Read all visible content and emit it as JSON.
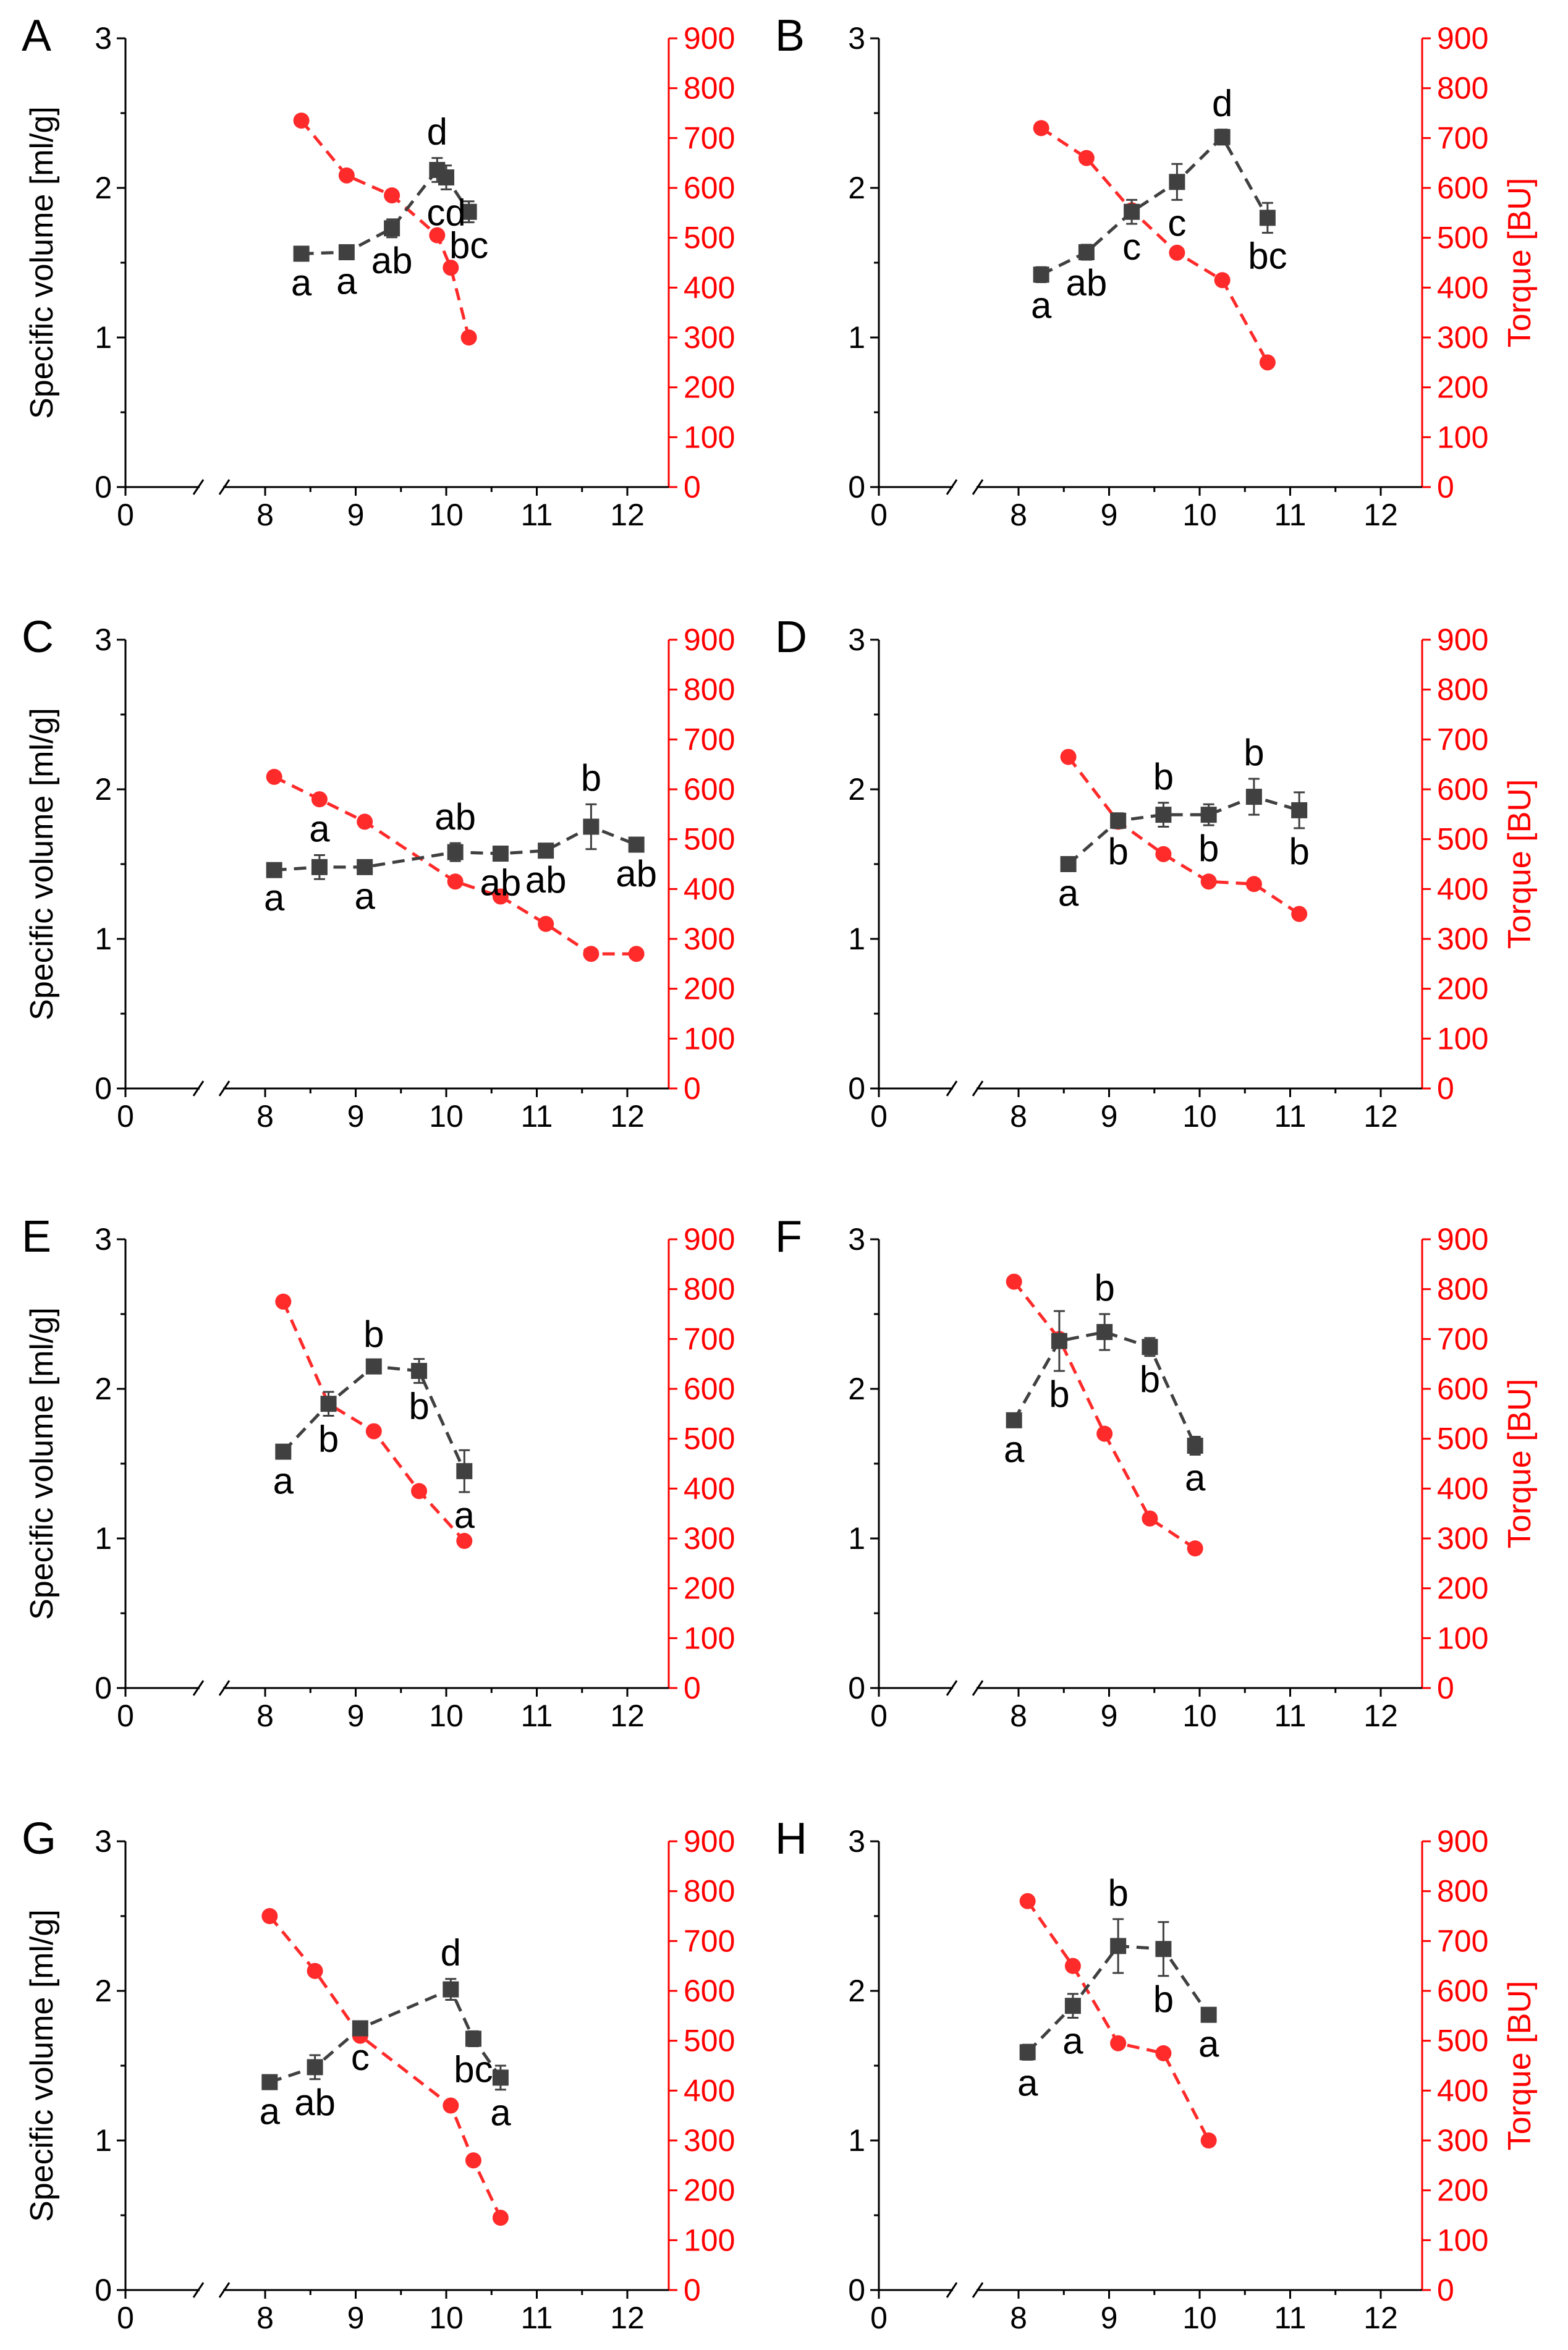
{
  "figure": {
    "left_axis_label": "Specific volume [ml/g]",
    "right_axis_label": "Torque [BU]",
    "x_tick_labels": [
      "0",
      "8",
      "9",
      "10",
      "11",
      "12"
    ],
    "left_tick_labels": [
      "0",
      "1",
      "2",
      "3"
    ],
    "right_tick_labels": [
      "0",
      "100",
      "200",
      "300",
      "400",
      "500",
      "600",
      "700",
      "800",
      "900"
    ],
    "colors": {
      "specific_volume": "#404040",
      "torque": "#ff2a2a",
      "axis": "#000000",
      "right_axis": "#ff0000"
    }
  },
  "chart_data": [
    {
      "type": "line",
      "panel": "A",
      "xlim": [
        0,
        12.5
      ],
      "x_break": [
        0.6,
        7.4
      ],
      "ylim_left": [
        0,
        3
      ],
      "ylim_right": [
        0,
        900
      ],
      "xlabel": "",
      "ylabel": "Specific volume [ml/g]",
      "ylabel_right": "",
      "series": [
        {
          "name": "Specific volume",
          "axis": "left",
          "x": [
            8.4,
            8.9,
            9.4,
            9.9,
            10.0,
            10.25
          ],
          "values": [
            1.56,
            1.57,
            1.73,
            2.12,
            2.07,
            1.84
          ],
          "errors": [
            0.04,
            0.04,
            0.06,
            0.08,
            0.08,
            0.07
          ],
          "labels": [
            "a",
            "a",
            "ab",
            "d",
            "cd",
            "bc"
          ]
        },
        {
          "name": "Torque",
          "axis": "right",
          "x": [
            8.4,
            8.9,
            9.4,
            9.9,
            10.05,
            10.25
          ],
          "values": [
            735,
            625,
            585,
            505,
            440,
            300
          ]
        }
      ]
    },
    {
      "type": "line",
      "panel": "B",
      "xlim": [
        0,
        12.5
      ],
      "x_break": [
        0.6,
        7.4
      ],
      "ylim_left": [
        0,
        3
      ],
      "ylim_right": [
        0,
        900
      ],
      "xlabel": "",
      "ylabel": "",
      "ylabel_right": "Torque [BU]",
      "series": [
        {
          "name": "Specific volume",
          "axis": "left",
          "x": [
            8.25,
            8.75,
            9.25,
            9.75,
            10.25,
            10.75
          ],
          "values": [
            1.42,
            1.57,
            1.84,
            2.04,
            2.34,
            1.8
          ],
          "errors": [
            0.05,
            0.05,
            0.08,
            0.12,
            0.05,
            0.1
          ],
          "labels": [
            "a",
            "ab",
            "c",
            "c",
            "d",
            "bc"
          ]
        },
        {
          "name": "Torque",
          "axis": "right",
          "x": [
            8.25,
            8.75,
            9.25,
            9.75,
            10.25,
            10.75
          ],
          "values": [
            720,
            660,
            555,
            470,
            415,
            250
          ]
        }
      ]
    },
    {
      "type": "line",
      "panel": "C",
      "xlim": [
        0,
        12.5
      ],
      "x_break": [
        0.6,
        7.4
      ],
      "ylim_left": [
        0,
        3
      ],
      "ylim_right": [
        0,
        900
      ],
      "xlabel": "",
      "ylabel": "Specific volume [ml/g]",
      "ylabel_right": "",
      "series": [
        {
          "name": "Specific volume",
          "axis": "left",
          "x": [
            8.1,
            8.6,
            9.1,
            10.1,
            10.6,
            11.1,
            11.6,
            12.1
          ],
          "values": [
            1.46,
            1.48,
            1.48,
            1.58,
            1.57,
            1.59,
            1.75,
            1.63
          ],
          "errors": [
            0.03,
            0.08,
            0.04,
            0.06,
            0.04,
            0.04,
            0.15,
            0.04
          ],
          "labels": [
            "a",
            "a",
            "a",
            "ab",
            "ab",
            "ab",
            "b",
            "ab"
          ]
        },
        {
          "name": "Torque",
          "axis": "right",
          "x": [
            8.1,
            8.6,
            9.1,
            10.1,
            10.6,
            11.1,
            11.6,
            12.1
          ],
          "values": [
            625,
            580,
            535,
            415,
            385,
            330,
            270,
            270
          ]
        }
      ]
    },
    {
      "type": "line",
      "panel": "D",
      "xlim": [
        0,
        12.5
      ],
      "x_break": [
        0.6,
        7.4
      ],
      "ylim_left": [
        0,
        3
      ],
      "ylim_right": [
        0,
        900
      ],
      "xlabel": "",
      "ylabel": "",
      "ylabel_right": "Torque [BU]",
      "series": [
        {
          "name": "Specific volume",
          "axis": "left",
          "x": [
            8.55,
            9.1,
            9.6,
            10.1,
            10.6,
            11.1
          ],
          "values": [
            1.5,
            1.79,
            1.83,
            1.83,
            1.95,
            1.86
          ],
          "errors": [
            0.04,
            0.05,
            0.08,
            0.07,
            0.12,
            0.12
          ],
          "labels": [
            "a",
            "b",
            "b",
            "b",
            "b",
            "b"
          ]
        },
        {
          "name": "Torque",
          "axis": "right",
          "x": [
            8.55,
            9.1,
            9.6,
            10.1,
            10.6,
            11.1
          ],
          "values": [
            665,
            535,
            470,
            415,
            410,
            350
          ]
        }
      ]
    },
    {
      "type": "line",
      "panel": "E",
      "xlim": [
        0,
        12.5
      ],
      "x_break": [
        0.6,
        7.4
      ],
      "ylim_left": [
        0,
        3
      ],
      "ylim_right": [
        0,
        900
      ],
      "xlabel": "",
      "ylabel": "Specific volume [ml/g]",
      "ylabel_right": "",
      "series": [
        {
          "name": "Specific volume",
          "axis": "left",
          "x": [
            8.2,
            8.7,
            9.2,
            9.7,
            10.2
          ],
          "values": [
            1.58,
            1.9,
            2.15,
            2.12,
            1.45
          ],
          "errors": [
            0.04,
            0.08,
            0.04,
            0.08,
            0.14
          ],
          "labels": [
            "a",
            "b",
            "b",
            "b",
            "a"
          ]
        },
        {
          "name": "Torque",
          "axis": "right",
          "x": [
            8.2,
            8.7,
            9.2,
            9.7,
            10.2
          ],
          "values": [
            775,
            570,
            515,
            395,
            295
          ]
        }
      ]
    },
    {
      "type": "line",
      "panel": "F",
      "xlim": [
        0,
        12.5
      ],
      "x_break": [
        0.6,
        7.4
      ],
      "ylim_left": [
        0,
        3
      ],
      "ylim_right": [
        0,
        900
      ],
      "xlabel": "",
      "ylabel": "",
      "ylabel_right": "Torque [BU]",
      "series": [
        {
          "name": "Specific volume",
          "axis": "left",
          "x": [
            7.95,
            8.45,
            8.95,
            9.45,
            9.95
          ],
          "values": [
            1.79,
            2.32,
            2.38,
            2.28,
            1.62
          ],
          "errors": [
            0.04,
            0.2,
            0.12,
            0.06,
            0.06
          ],
          "labels": [
            "a",
            "b",
            "b",
            "b",
            "a"
          ]
        },
        {
          "name": "Torque",
          "axis": "right",
          "x": [
            7.95,
            8.45,
            8.95,
            9.45,
            9.95
          ],
          "values": [
            815,
            700,
            510,
            340,
            280
          ]
        }
      ]
    },
    {
      "type": "line",
      "panel": "G",
      "xlim": [
        0,
        12.5
      ],
      "x_break": [
        0.6,
        7.4
      ],
      "ylim_left": [
        0,
        3
      ],
      "ylim_right": [
        0,
        900
      ],
      "xlabel": "",
      "ylabel": "Specific volume [ml/g]",
      "ylabel_right": "",
      "series": [
        {
          "name": "Specific volume",
          "axis": "left",
          "x": [
            8.05,
            8.55,
            9.05,
            10.05,
            10.3,
            10.6
          ],
          "values": [
            1.39,
            1.49,
            1.75,
            2.01,
            1.68,
            1.42
          ],
          "errors": [
            0.04,
            0.08,
            0.04,
            0.07,
            0.05,
            0.08
          ],
          "labels": [
            "a",
            "ab",
            "c",
            "d",
            "bc",
            "a"
          ]
        },
        {
          "name": "Torque",
          "axis": "right",
          "x": [
            8.05,
            8.55,
            9.05,
            10.05,
            10.3,
            10.6
          ],
          "values": [
            750,
            640,
            510,
            370,
            260,
            145
          ]
        }
      ]
    },
    {
      "type": "line",
      "panel": "H",
      "xlim": [
        0,
        12.5
      ],
      "x_break": [
        0.6,
        7.4
      ],
      "ylim_left": [
        0,
        3
      ],
      "ylim_right": [
        0,
        900
      ],
      "xlabel": "",
      "ylabel": "",
      "ylabel_right": "Torque [BU]",
      "series": [
        {
          "name": "Specific volume",
          "axis": "left",
          "x": [
            8.1,
            8.6,
            9.1,
            9.6,
            10.1
          ],
          "values": [
            1.59,
            1.9,
            2.3,
            2.28,
            1.84
          ],
          "errors": [
            0.05,
            0.08,
            0.18,
            0.18,
            0.04
          ],
          "labels": [
            "a",
            "a",
            "b",
            "b",
            "a"
          ]
        },
        {
          "name": "Torque",
          "axis": "right",
          "x": [
            8.1,
            8.6,
            9.1,
            9.6,
            10.1
          ],
          "values": [
            780,
            650,
            495,
            475,
            300
          ]
        }
      ]
    }
  ]
}
